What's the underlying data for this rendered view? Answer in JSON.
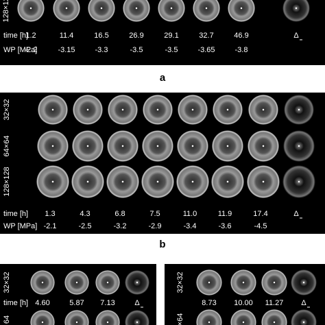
{
  "panel_a": {
    "row_labels": [
      "128×12"
    ],
    "time_label": "time [h]",
    "times": [
      "1.2",
      "11.4",
      "16.5",
      "26.9",
      "29.1",
      "32.7",
      "46.9",
      "Δ"
    ],
    "wp_label": "WP [MPa]",
    "wps": [
      "-2.2",
      "-3.15",
      "-3.3",
      "-3.5",
      "-3.5",
      "-3.65",
      "-3.8"
    ],
    "label": "a"
  },
  "panel_b": {
    "row_labels": [
      "32×32",
      "64×64",
      "128×128"
    ],
    "time_label": "time [h]",
    "times": [
      "1.3",
      "4.3",
      "6.8",
      "7.5",
      "11.0",
      "11.9",
      "17.4",
      "Δ"
    ],
    "wp_label": "WP [MPa]",
    "wps": [
      "-2.1",
      "-2.5",
      "-3.2",
      "-2.9",
      "-3.4",
      "-3.6",
      "-4.5"
    ],
    "label": "b"
  },
  "panel_c_left": {
    "row_labels": [
      "32×32",
      "64"
    ],
    "time_label": "time [h]",
    "times": [
      "4.60",
      "5.87",
      "7.13",
      "Δ"
    ]
  },
  "panel_c_right": {
    "row_labels": [
      "32×32",
      "×64"
    ],
    "times": [
      "8.73",
      "10.00",
      "11.27",
      "Δ"
    ]
  }
}
